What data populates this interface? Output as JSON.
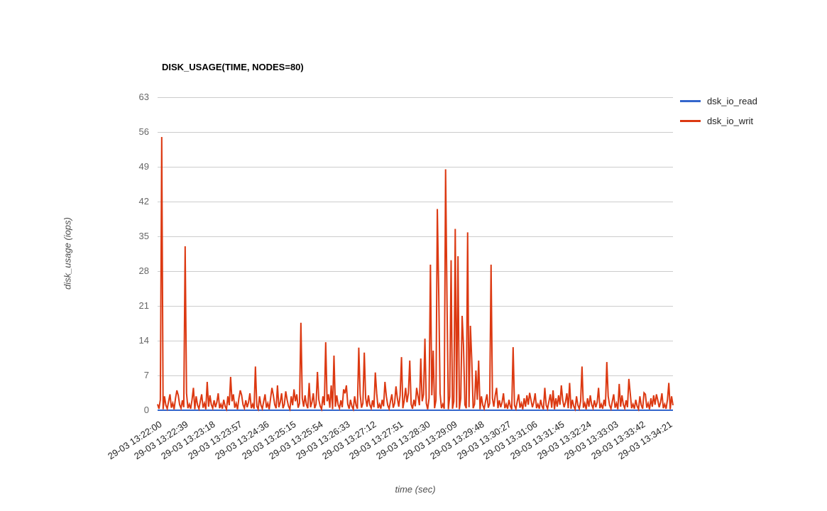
{
  "chart_data": {
    "type": "line",
    "title": "DISK_USAGE(TIME, NODES=80)",
    "xlabel": "time (sec)",
    "ylabel": "disk_usage (iops)",
    "ylim": [
      0,
      63
    ],
    "y_ticks": [
      0,
      7,
      14,
      21,
      28,
      35,
      42,
      49,
      56,
      63
    ],
    "grid": "horizontal-only",
    "legend_position": "right-top",
    "xlim_seconds": [
      0,
      748
    ],
    "x_tick_interval_seconds": 39,
    "x_tick_seconds": [
      0,
      39,
      78,
      117,
      156,
      195,
      234,
      273,
      312,
      351,
      390,
      429,
      468,
      507,
      546,
      585,
      624,
      663,
      702,
      741
    ],
    "x_tick_labels": [
      "29-03 13:22:00",
      "29-03 13:22:39",
      "29-03 13:23:18",
      "29-03 13:23:57",
      "29-03 13:24:36",
      "29-03 13:25:15",
      "29-03 13:25:54",
      "29-03 13:26:33",
      "29-03 13:27:12",
      "29-03 13:27:51",
      "29-03 13:28:30",
      "29-03 13:29:09",
      "29-03 13:29:48",
      "29-03 13:30:27",
      "29-03 13:31:06",
      "29-03 13:31:45",
      "29-03 13:32:24",
      "29-03 13:33:03",
      "29-03 13:33:42",
      "29-03 13:34:21"
    ],
    "series": [
      {
        "name": "dsk_io_read",
        "color": "#3366cc",
        "render": "constant",
        "constant_value": 0
      },
      {
        "name": "dsk_io_writ",
        "color": "#dc3912",
        "render": "baseline-plus-spikes",
        "sample_interval_seconds": 2,
        "baseline_cycle": [
          1.2,
          0.3,
          2.1,
          0.8,
          0.2,
          2.8,
          1.0,
          0.3,
          1.8,
          3.2,
          0.5,
          1.4,
          0.2,
          2.4,
          0.7,
          3.0,
          1.1,
          0.4,
          2.0,
          0.6,
          1.6,
          3.4,
          0.4
        ],
        "spikes": [
          [
            6,
            55
          ],
          [
            27,
            4
          ],
          [
            39,
            33
          ],
          [
            51,
            4.5
          ],
          [
            72,
            5.7
          ],
          [
            105,
            6.7
          ],
          [
            120,
            4
          ],
          [
            141,
            8.8
          ],
          [
            165,
            4.5
          ],
          [
            174,
            5
          ],
          [
            186,
            3.8
          ],
          [
            198,
            4.2
          ],
          [
            207,
            17.6
          ],
          [
            219,
            5.5
          ],
          [
            231,
            7.7
          ],
          [
            243,
            13.7
          ],
          [
            252,
            5
          ],
          [
            255,
            11
          ],
          [
            270,
            4.2
          ],
          [
            273,
            5
          ],
          [
            291,
            12.6
          ],
          [
            300,
            11.6
          ],
          [
            315,
            7.6
          ],
          [
            330,
            5.7
          ],
          [
            345,
            4.8
          ],
          [
            354,
            10.7
          ],
          [
            360,
            4.5
          ],
          [
            366,
            10
          ],
          [
            375,
            4.5
          ],
          [
            381,
            10.4
          ],
          [
            387,
            14.4
          ],
          [
            396,
            29.3
          ],
          [
            399,
            12
          ],
          [
            405,
            40.5
          ],
          [
            408,
            24
          ],
          [
            417,
            48.5
          ],
          [
            420,
            22.5
          ],
          [
            426,
            30.2
          ],
          [
            432,
            36.5
          ],
          [
            435,
            31
          ],
          [
            441,
            19
          ],
          [
            444,
            13
          ],
          [
            450,
            35.8
          ],
          [
            453,
            17
          ],
          [
            456,
            10
          ],
          [
            462,
            8
          ],
          [
            465,
            10
          ],
          [
            483,
            29.3
          ],
          [
            492,
            4.5
          ],
          [
            516,
            12.7
          ],
          [
            540,
            3.5
          ],
          [
            561,
            4.5
          ],
          [
            573,
            4
          ],
          [
            585,
            5
          ],
          [
            597,
            5.5
          ],
          [
            615,
            8.8
          ],
          [
            639,
            4.5
          ],
          [
            651,
            9.7
          ],
          [
            669,
            5.3
          ],
          [
            684,
            6.3
          ],
          [
            705,
            3.5
          ],
          [
            723,
            3.2
          ],
          [
            741,
            5.5
          ]
        ]
      }
    ]
  }
}
